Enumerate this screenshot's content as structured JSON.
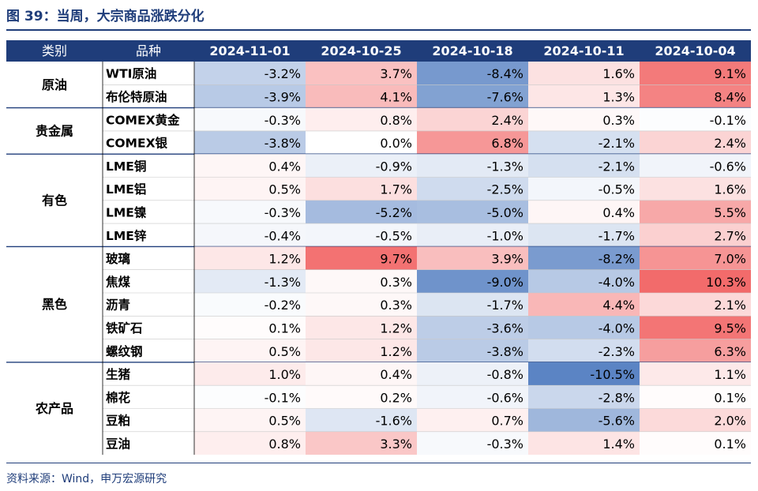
{
  "title": "图 39：当周，大宗商品涨跌分化",
  "source": "资料来源：Wind，申万宏源研究",
  "colors": {
    "header_bg": "#1f3d7a",
    "header_text": "#ffffff",
    "positive": "#f26b6b",
    "negative": "#5b84c4",
    "text": "#000000"
  },
  "chart_data": {
    "type": "heatmap",
    "header": [
      "类别",
      "品种",
      "2024-11-01",
      "2024-10-25",
      "2024-10-18",
      "2024-10-11",
      "2024-10-04"
    ],
    "columns": [
      "2024-11-01",
      "2024-10-25",
      "2024-10-18",
      "2024-10-11",
      "2024-10-04"
    ],
    "groups": [
      {
        "name": "原油",
        "rows": [
          {
            "label": "WTI原油",
            "values": [
              "-3.2%",
              "3.7%",
              "-8.4%",
              "1.6%",
              "9.1%"
            ]
          },
          {
            "label": "布伦特原油",
            "values": [
              "-3.9%",
              "4.1%",
              "-7.6%",
              "1.3%",
              "8.4%"
            ]
          }
        ]
      },
      {
        "name": "贵金属",
        "rows": [
          {
            "label": "COMEX黄金",
            "values": [
              "-0.3%",
              "0.8%",
              "2.4%",
              "0.3%",
              "-0.1%"
            ]
          },
          {
            "label": "COMEX银",
            "values": [
              "-3.8%",
              "0.0%",
              "6.8%",
              "-2.1%",
              "2.4%"
            ]
          }
        ]
      },
      {
        "name": "有色",
        "rows": [
          {
            "label": "LME铜",
            "values": [
              "0.4%",
              "-0.9%",
              "-1.3%",
              "-2.1%",
              "-0.6%"
            ]
          },
          {
            "label": "LME铝",
            "values": [
              "0.5%",
              "1.7%",
              "-2.5%",
              "-0.5%",
              "1.6%"
            ]
          },
          {
            "label": "LME镍",
            "values": [
              "-0.3%",
              "-5.2%",
              "-5.0%",
              "0.4%",
              "5.5%"
            ]
          },
          {
            "label": "LME锌",
            "values": [
              "-0.4%",
              "-0.5%",
              "-1.0%",
              "-1.7%",
              "2.7%"
            ]
          }
        ]
      },
      {
        "name": "黑色",
        "rows": [
          {
            "label": "玻璃",
            "values": [
              "1.2%",
              "9.7%",
              "3.9%",
              "-8.2%",
              "7.0%"
            ]
          },
          {
            "label": "焦煤",
            "values": [
              "-1.3%",
              "0.3%",
              "-9.0%",
              "-4.0%",
              "10.3%"
            ]
          },
          {
            "label": "沥青",
            "values": [
              "-0.2%",
              "0.3%",
              "-1.7%",
              "4.4%",
              "2.1%"
            ]
          },
          {
            "label": "铁矿石",
            "values": [
              "0.1%",
              "1.2%",
              "-3.6%",
              "-4.0%",
              "9.5%"
            ]
          },
          {
            "label": "螺纹钢",
            "values": [
              "0.5%",
              "1.2%",
              "-3.8%",
              "-2.3%",
              "6.3%"
            ]
          }
        ]
      },
      {
        "name": "农产品",
        "rows": [
          {
            "label": "生猪",
            "values": [
              "1.0%",
              "0.4%",
              "-0.8%",
              "-10.5%",
              "1.1%"
            ]
          },
          {
            "label": "棉花",
            "values": [
              "-0.1%",
              "0.2%",
              "-0.6%",
              "-2.8%",
              "0.1%"
            ]
          },
          {
            "label": "豆粕",
            "values": [
              "0.5%",
              "-1.6%",
              "0.7%",
              "-5.6%",
              "2.0%"
            ]
          },
          {
            "label": "豆油",
            "values": [
              "0.8%",
              "3.3%",
              "-0.3%",
              "1.4%",
              "0.1%"
            ]
          }
        ]
      }
    ]
  }
}
